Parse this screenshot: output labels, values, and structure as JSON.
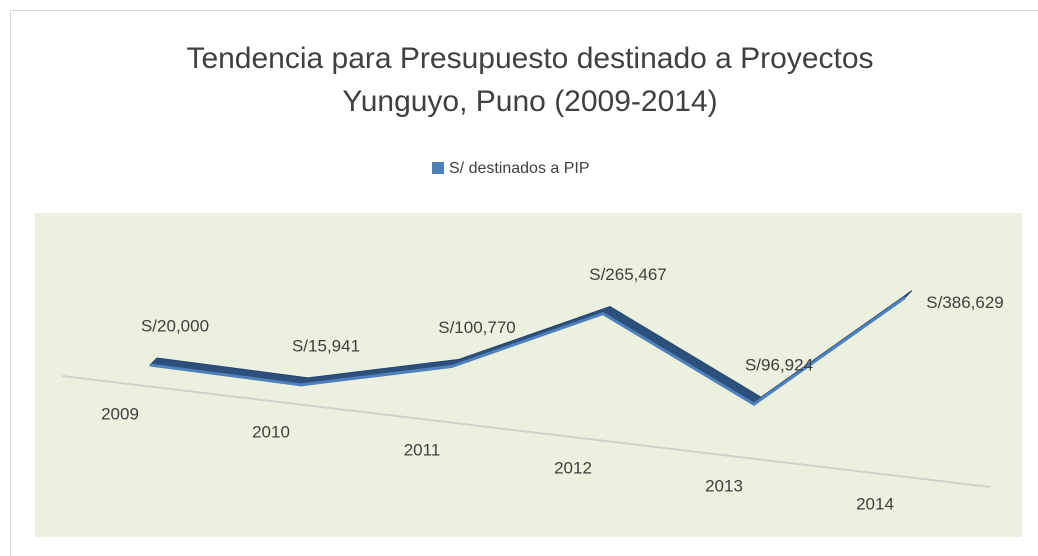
{
  "chart_data": {
    "type": "line3d",
    "title": [
      "Tendencia para Presupuesto destinado a Proyectos",
      "Yunguyo, Puno (2009-2014)"
    ],
    "categories": [
      "2009",
      "2010",
      "2011",
      "2012",
      "2013",
      "2014"
    ],
    "series": [
      {
        "name": "S/ destinados a PIP",
        "color": "#4f81bd",
        "values": [
          20000,
          15941,
          100770,
          265467,
          96924,
          386629
        ],
        "value_labels": [
          "S/20,000",
          "S/15,941",
          "S/100,770",
          "S/265,467",
          "S/96,924",
          "S/386,629"
        ]
      }
    ],
    "ylim": [
      -30000,
      400000
    ],
    "legend": "top"
  }
}
